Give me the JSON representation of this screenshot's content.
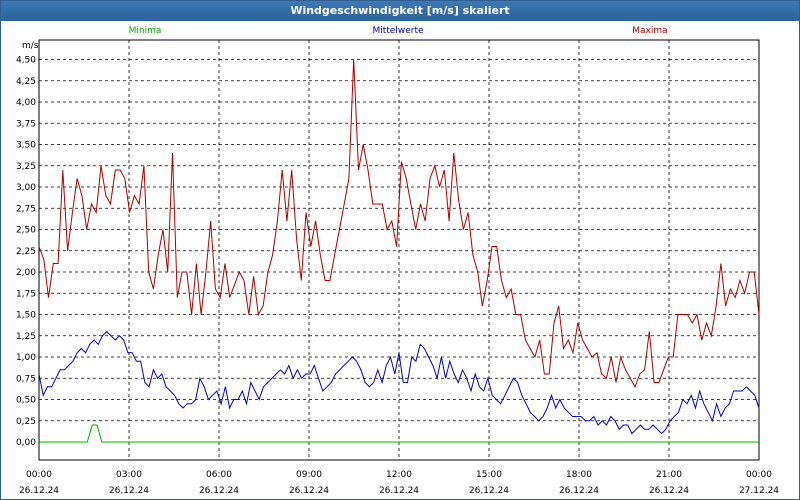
{
  "window": {
    "title": "Windgeschwindigkeit [m/s] skaliert"
  },
  "colors": {
    "minima": "#00b000",
    "mittelwerte": "#0000c0",
    "maxima": "#b00000",
    "titlebar": "#2f6aa6"
  },
  "chart_data": {
    "type": "line",
    "title": "Windgeschwindigkeit [m/s] skaliert",
    "ylabel": "m/s",
    "xlabel": "",
    "ylim": [
      0,
      4.75
    ],
    "grid": true,
    "legend_position": "top",
    "yticks": [
      "4,50",
      "4,25",
      "4,00",
      "3,75",
      "3,50",
      "3,25",
      "3,00",
      "2,75",
      "2,50",
      "2,25",
      "2,00",
      "1,75",
      "1,50",
      "1,25",
      "1,00",
      "0,75",
      "0,50",
      "0,25",
      "0,00"
    ],
    "xticks": [
      {
        "time": "00:00",
        "date": "26.12.24"
      },
      {
        "time": "03:00",
        "date": "26.12.24"
      },
      {
        "time": "06:00",
        "date": "26.12.24"
      },
      {
        "time": "09:00",
        "date": "26.12.24"
      },
      {
        "time": "12:00",
        "date": "26.12.24"
      },
      {
        "time": "15:00",
        "date": "26.12.24"
      },
      {
        "time": "18:00",
        "date": "26.12.24"
      },
      {
        "time": "21:00",
        "date": "26.12.24"
      },
      {
        "time": "00:00",
        "date": "27.12.24"
      }
    ],
    "series": [
      {
        "name": "Minima",
        "color": "#00b000",
        "values": [
          0,
          0,
          0,
          0,
          0,
          0,
          0,
          0,
          0,
          0,
          0,
          0.2,
          0.2,
          0,
          0,
          0,
          0,
          0,
          0,
          0,
          0,
          0,
          0,
          0,
          0,
          0,
          0,
          0,
          0,
          0,
          0,
          0,
          0,
          0,
          0,
          0,
          0,
          0,
          0,
          0,
          0,
          0,
          0,
          0,
          0,
          0,
          0,
          0,
          0,
          0,
          0,
          0,
          0,
          0,
          0,
          0,
          0,
          0,
          0,
          0,
          0,
          0,
          0,
          0,
          0,
          0,
          0,
          0,
          0,
          0,
          0,
          0,
          0,
          0,
          0,
          0,
          0,
          0,
          0,
          0,
          0,
          0,
          0,
          0,
          0,
          0,
          0,
          0,
          0,
          0,
          0,
          0,
          0,
          0,
          0,
          0,
          0,
          0,
          0,
          0,
          0,
          0,
          0,
          0,
          0,
          0,
          0,
          0,
          0,
          0,
          0,
          0,
          0,
          0,
          0,
          0,
          0,
          0,
          0,
          0,
          0,
          0,
          0,
          0,
          0,
          0,
          0,
          0,
          0,
          0,
          0,
          0,
          0,
          0,
          0,
          0,
          0,
          0,
          0,
          0,
          0,
          0,
          0,
          0,
          0,
          0,
          0,
          0,
          0,
          0
        ]
      },
      {
        "name": "Mittelwerte",
        "color": "#0000c0",
        "values": [
          0.8,
          0.55,
          0.65,
          0.65,
          0.75,
          0.85,
          0.85,
          0.9,
          0.95,
          1.05,
          1.1,
          1.05,
          1.15,
          1.2,
          1.15,
          1.25,
          1.3,
          1.25,
          1.2,
          1.25,
          1.2,
          1.05,
          1.05,
          0.95,
          0.95,
          0.7,
          0.65,
          0.85,
          0.75,
          0.8,
          0.65,
          0.6,
          0.55,
          0.45,
          0.4,
          0.45,
          0.45,
          0.5,
          0.75,
          0.65,
          0.5,
          0.55,
          0.6,
          0.45,
          0.65,
          0.4,
          0.5,
          0.5,
          0.6,
          0.45,
          0.7,
          0.6,
          0.5,
          0.65,
          0.7,
          0.75,
          0.8,
          0.85,
          0.8,
          0.9,
          0.75,
          0.85,
          0.75,
          0.8,
          0.8,
          0.9,
          0.75,
          0.6,
          0.65,
          0.7,
          0.8,
          0.85,
          0.9,
          0.95,
          1.0,
          0.95,
          0.85,
          0.7,
          0.65,
          0.7,
          0.85,
          0.7,
          0.9,
          1.0,
          0.8,
          1.05,
          0.7,
          0.7,
          1.0,
          0.95,
          1.15,
          1.1,
          1.0,
          0.9,
          0.75,
          1.0,
          0.75,
          0.95,
          0.8,
          0.7,
          0.85,
          0.75,
          0.6,
          0.8,
          0.65,
          0.6,
          0.75,
          0.55,
          0.5,
          0.45,
          0.55,
          0.65,
          0.75,
          0.7,
          0.55,
          0.45,
          0.35,
          0.3,
          0.25,
          0.3,
          0.4,
          0.55,
          0.4,
          0.5,
          0.4,
          0.35,
          0.3,
          0.3,
          0.3,
          0.25,
          0.25,
          0.3,
          0.2,
          0.25,
          0.2,
          0.3,
          0.25,
          0.15,
          0.2,
          0.2,
          0.1,
          0.15,
          0.2,
          0.15,
          0.15,
          0.2,
          0.15,
          0.1,
          0.15,
          0.25,
          0.3,
          0.35,
          0.5,
          0.45,
          0.55,
          0.4,
          0.6,
          0.45,
          0.35,
          0.25,
          0.45,
          0.3,
          0.4,
          0.45,
          0.6,
          0.6,
          0.6,
          0.65,
          0.6,
          0.55,
          0.4
        ]
      },
      {
        "name": "Maxima",
        "color": "#b00000",
        "values": [
          2.3,
          2.15,
          1.7,
          2.1,
          2.1,
          3.2,
          2.25,
          2.7,
          3.1,
          2.9,
          2.5,
          2.8,
          2.7,
          3.25,
          2.9,
          2.8,
          3.2,
          3.2,
          3.1,
          2.7,
          2.9,
          2.8,
          3.25,
          2.0,
          1.8,
          2.2,
          2.5,
          2.0,
          3.4,
          1.7,
          2.0,
          2.0,
          1.5,
          2.1,
          1.5,
          2.0,
          2.6,
          1.8,
          1.7,
          2.1,
          1.7,
          1.85,
          2.0,
          1.9,
          1.5,
          1.95,
          1.5,
          1.6,
          2.0,
          2.2,
          2.6,
          3.2,
          2.6,
          3.2,
          2.4,
          1.9,
          2.7,
          2.3,
          2.6,
          2.2,
          1.9,
          1.9,
          2.2,
          2.5,
          2.8,
          3.1,
          4.5,
          3.2,
          3.5,
          3.2,
          2.8,
          2.8,
          2.8,
          2.5,
          2.6,
          2.3,
          3.3,
          3.1,
          2.8,
          2.5,
          2.8,
          2.6,
          3.1,
          3.25,
          3.0,
          3.2,
          2.6,
          3.4,
          2.85,
          2.5,
          2.7,
          2.2,
          2.0,
          1.6,
          1.9,
          2.3,
          2.3,
          1.9,
          1.7,
          1.8,
          1.5,
          1.5,
          1.2,
          1.1,
          1.0,
          1.2,
          0.8,
          0.8,
          1.4,
          1.6,
          1.1,
          1.2,
          1.05,
          1.4,
          1.2,
          1.1,
          1.0,
          1.05,
          0.8,
          0.75,
          1.0,
          0.7,
          1.0,
          0.85,
          0.75,
          0.65,
          0.8,
          0.85,
          1.3,
          0.7,
          0.7,
          0.85,
          1.0,
          1.0,
          1.5,
          1.5,
          1.5,
          1.4,
          1.5,
          1.2,
          1.4,
          1.25,
          1.6,
          2.1,
          1.6,
          1.8,
          1.7,
          1.9,
          1.75,
          2.0,
          2.0,
          1.5
        ]
      }
    ]
  }
}
